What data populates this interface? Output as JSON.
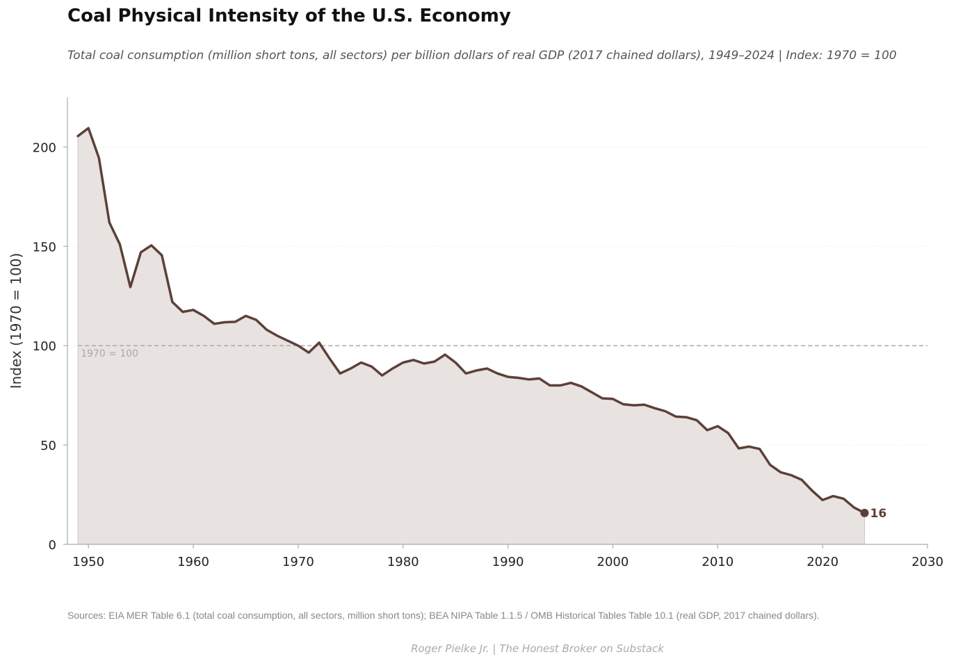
{
  "header": {
    "title": "Coal Physical Intensity of the U.S. Economy",
    "subtitle": "Total coal consumption (million short tons, all sectors) per billion dollars of real GDP (2017 chained dollars), 1949–2024  |  Index: 1970 = 100"
  },
  "footer": {
    "source": "Sources: EIA MER Table 6.1 (total coal consumption, all sectors, million short tons); BEA NIPA Table 1.1.5 / OMB Historical Tables Table 10.1 (real GDP, 2017 chained dollars).",
    "credit": "Roger Pielke Jr.  |  The Honest Broker on Substack"
  },
  "colors": {
    "line": "#5c4038",
    "fill": "#e8e2e0",
    "reference": "#aaaaaa",
    "grid": "#e6e6e6"
  },
  "chart_data": {
    "type": "area",
    "title": "Coal Physical Intensity of the U.S. Economy",
    "ylabel": "Index (1970 = 100)",
    "xlabel": "",
    "xlim": [
      1948,
      2030
    ],
    "ylim": [
      0,
      225
    ],
    "xticks": [
      1950,
      1960,
      1970,
      1980,
      1990,
      2000,
      2010,
      2020,
      2030
    ],
    "yticks": [
      0,
      50,
      100,
      150,
      200
    ],
    "grid": "horizontal dotted",
    "reference_line": {
      "y": 100,
      "label": "1970 = 100"
    },
    "end_label": "16",
    "x": [
      1949,
      1950,
      1951,
      1952,
      1953,
      1954,
      1955,
      1956,
      1957,
      1958,
      1959,
      1960,
      1961,
      1962,
      1963,
      1964,
      1965,
      1966,
      1967,
      1968,
      1969,
      1970,
      1971,
      1972,
      1973,
      1974,
      1975,
      1976,
      1977,
      1978,
      1979,
      1980,
      1981,
      1982,
      1983,
      1984,
      1985,
      1986,
      1987,
      1988,
      1989,
      1990,
      1991,
      1992,
      1993,
      1994,
      1995,
      1996,
      1997,
      1998,
      1999,
      2000,
      2001,
      2002,
      2003,
      2004,
      2005,
      2006,
      2007,
      2008,
      2009,
      2010,
      2011,
      2012,
      2013,
      2014,
      2015,
      2016,
      2017,
      2018,
      2019,
      2020,
      2021,
      2022,
      2023,
      2024
    ],
    "y": [
      205.5,
      209.5,
      194.5,
      162,
      151,
      129.5,
      147,
      150.5,
      145.5,
      122,
      117,
      118,
      115,
      111,
      111.8,
      112,
      115,
      113,
      108,
      105,
      102.5,
      100,
      96.5,
      101.5,
      93.5,
      86,
      88.5,
      91.5,
      89.5,
      85,
      88.5,
      91.5,
      92.8,
      91,
      92,
      95.5,
      91.5,
      86,
      87.5,
      88.5,
      86,
      84.3,
      83.8,
      83,
      83.5,
      80,
      80,
      81.3,
      79.5,
      76.5,
      73.5,
      73.2,
      70.5,
      70,
      70.3,
      68.5,
      67,
      64.3,
      64,
      62.5,
      57.5,
      59.5,
      56,
      48.3,
      49.2,
      48,
      40,
      36.3,
      34.8,
      32.5,
      27,
      22.3,
      24.3,
      23,
      18.5,
      15.8
    ]
  }
}
